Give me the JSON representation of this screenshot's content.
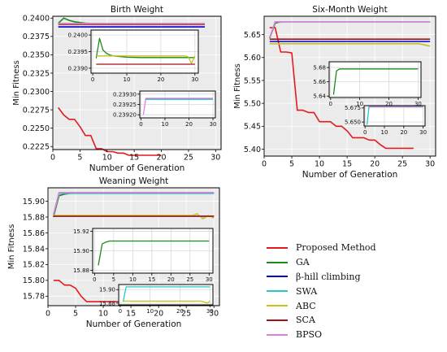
{
  "chart_data": [
    {
      "id": "birth",
      "type": "line",
      "title": "Birth Weight",
      "xlabel": "Number of Generation",
      "ylabel": "Min Fitness",
      "xlim": [
        0,
        31
      ],
      "ylim": [
        0.22208,
        0.24025
      ],
      "xticks": [
        0,
        5,
        10,
        15,
        20,
        25,
        30
      ],
      "yticks": [
        0.2225,
        0.225,
        0.2275,
        0.23,
        0.2325,
        0.235,
        0.2375,
        0.24
      ],
      "ytick_labels": [
        "0.2225",
        "0.2250",
        "0.2275",
        "0.2300",
        "0.2325",
        "0.2350",
        "0.2375",
        "0.2400"
      ],
      "grid": true,
      "series": [
        {
          "key": "proposed",
          "x": [
            1,
            2,
            3,
            4,
            5,
            6,
            7,
            8,
            9,
            10,
            11,
            12,
            13,
            14,
            15,
            16,
            17,
            18,
            19,
            20
          ],
          "y": [
            0.2278,
            0.2268,
            0.2262,
            0.2262,
            0.2252,
            0.224,
            0.224,
            0.2222,
            0.2222,
            0.2218,
            0.2218,
            0.2216,
            0.2216,
            0.2213,
            0.2213,
            0.2213,
            0.2213,
            0.2213,
            0.2213,
            0.2213
          ]
        },
        {
          "key": "ga",
          "x": [
            1,
            2,
            3,
            4,
            5,
            6,
            8,
            10,
            14,
            20,
            28
          ],
          "y": [
            0.2393,
            0.24,
            0.2397,
            0.2395,
            0.2394,
            0.2393,
            0.23925,
            0.2392,
            0.2392,
            0.2392,
            0.2392
          ]
        },
        {
          "key": "bhill",
          "x": [
            1,
            28
          ],
          "y": [
            0.2388,
            0.2388
          ]
        },
        {
          "key": "swa",
          "x": [
            1,
            28
          ],
          "y": [
            0.23925,
            0.23925
          ]
        },
        {
          "key": "abc",
          "x": [
            1,
            28
          ],
          "y": [
            0.23925,
            0.23925
          ]
        },
        {
          "key": "sca",
          "x": [
            1,
            28
          ],
          "y": [
            0.23915,
            0.23915
          ]
        },
        {
          "key": "bpso",
          "x": [
            1,
            28
          ],
          "y": [
            0.23925,
            0.23925
          ]
        }
      ]
    },
    {
      "id": "birth-inset1",
      "type": "line",
      "xlim": [
        -0.5,
        31
      ],
      "ylim": [
        0.23885,
        0.24015
      ],
      "xticks": [
        0,
        10,
        20,
        30
      ],
      "yticks": [
        0.239,
        0.2395,
        0.24
      ],
      "ytick_labels": [
        "0.2390",
        "0.2395",
        "0.2400"
      ],
      "grid": true,
      "series": [
        {
          "key": "ga",
          "x": [
            1,
            2,
            3,
            4,
            5,
            6,
            8,
            10,
            14,
            20,
            30
          ],
          "y": [
            0.2393,
            0.2399,
            0.23955,
            0.23945,
            0.2394,
            0.23937,
            0.23935,
            0.23933,
            0.23932,
            0.23932,
            0.23932
          ]
        },
        {
          "key": "abc",
          "x": [
            1,
            27,
            28,
            29,
            30
          ],
          "y": [
            0.23937,
            0.23937,
            0.23935,
            0.23915,
            0.23937
          ]
        },
        {
          "key": "sca",
          "x": [
            1,
            30
          ],
          "y": [
            0.23912,
            0.23912
          ]
        }
      ]
    },
    {
      "id": "birth-inset2",
      "type": "line",
      "xlim": [
        -0.5,
        31
      ],
      "ylim": [
        0.239185,
        0.239315
      ],
      "xticks": [
        0,
        10,
        20,
        30
      ],
      "yticks": [
        0.2392,
        0.23925,
        0.2393
      ],
      "ytick_labels": [
        "0.23920",
        "0.23925",
        "0.23930"
      ],
      "grid": true,
      "series": [
        {
          "key": "bpso",
          "x": [
            1,
            2,
            30
          ],
          "y": [
            0.2392,
            0.23928,
            0.23928
          ]
        },
        {
          "key": "swa",
          "x": [
            2,
            30
          ],
          "y": [
            0.239275,
            0.239275
          ]
        }
      ]
    },
    {
      "id": "sixmonth",
      "type": "line",
      "title": "Six-Month Weight",
      "xlabel": "Number of Generation",
      "ylabel": "Min Fitness",
      "xlim": [
        0,
        31
      ],
      "ylim": [
        5.385,
        5.69
      ],
      "xticks": [
        0,
        5,
        10,
        15,
        20,
        25,
        30
      ],
      "yticks": [
        5.4,
        5.45,
        5.5,
        5.55,
        5.6,
        5.65
      ],
      "ytick_labels": [
        "5.40",
        "5.45",
        "5.50",
        "5.55",
        "5.60",
        "5.65"
      ],
      "grid": true,
      "series": [
        {
          "key": "proposed",
          "x": [
            1,
            2,
            3,
            4,
            5,
            6,
            7,
            8,
            9,
            10,
            11,
            12,
            13,
            14,
            15,
            16,
            17,
            18,
            19,
            20,
            21,
            22,
            23,
            24,
            25,
            26,
            27
          ],
          "y": [
            5.665,
            5.665,
            5.612,
            5.612,
            5.61,
            5.485,
            5.485,
            5.48,
            5.48,
            5.46,
            5.46,
            5.46,
            5.45,
            5.45,
            5.44,
            5.425,
            5.425,
            5.425,
            5.42,
            5.42,
            5.41,
            5.402,
            5.402,
            5.402,
            5.402,
            5.402,
            5.402
          ]
        },
        {
          "key": "ga",
          "x": [
            1,
            2,
            3,
            30
          ],
          "y": [
            5.642,
            5.675,
            5.678,
            5.678
          ]
        },
        {
          "key": "bhill",
          "x": [
            1,
            30
          ],
          "y": [
            5.635,
            5.635
          ]
        },
        {
          "key": "swa",
          "x": [
            1,
            2,
            30
          ],
          "y": [
            5.643,
            5.678,
            5.678
          ]
        },
        {
          "key": "abc",
          "x": [
            1,
            28,
            30
          ],
          "y": [
            5.63,
            5.63,
            5.625
          ]
        },
        {
          "key": "sca",
          "x": [
            1,
            30
          ],
          "y": [
            5.64,
            5.64
          ]
        },
        {
          "key": "bpso",
          "x": [
            1,
            2,
            30
          ],
          "y": [
            5.643,
            5.678,
            5.678
          ]
        }
      ]
    },
    {
      "id": "sixmonth-inset1",
      "type": "line",
      "xlim": [
        -0.5,
        31
      ],
      "ylim": [
        5.638,
        5.688
      ],
      "xticks": [
        0,
        10,
        20,
        30
      ],
      "yticks": [
        5.64,
        5.66,
        5.68
      ],
      "ytick_labels": [
        "5.64",
        "5.66",
        "5.68"
      ],
      "grid": true,
      "series": [
        {
          "key": "ga",
          "x": [
            1,
            2,
            3,
            4,
            30
          ],
          "y": [
            5.642,
            5.675,
            5.678,
            5.678,
            5.678
          ]
        }
      ]
    },
    {
      "id": "sixmonth-inset2",
      "type": "line",
      "xlim": [
        -0.5,
        31
      ],
      "ylim": [
        5.643,
        5.679
      ],
      "xticks": [
        0,
        10,
        20,
        30
      ],
      "yticks": [
        5.65,
        5.675
      ],
      "ytick_labels": [
        "5.650",
        "5.675"
      ],
      "grid": true,
      "series": [
        {
          "key": "swa",
          "x": [
            1,
            2,
            30
          ],
          "y": [
            5.645,
            5.677,
            5.677
          ]
        },
        {
          "key": "bpso",
          "x": [
            2,
            30
          ],
          "y": [
            5.6775,
            5.6775
          ]
        }
      ]
    },
    {
      "id": "weaning",
      "type": "line",
      "title": "Weaning Weight",
      "xlabel": "Number of Generation",
      "ylabel": "Min Fitness",
      "xlim": [
        0,
        31
      ],
      "ylim": [
        15.768,
        15.917
      ],
      "xticks": [
        0,
        5,
        10,
        15,
        20,
        25,
        30
      ],
      "yticks": [
        15.78,
        15.8,
        15.82,
        15.84,
        15.86,
        15.88,
        15.9
      ],
      "ytick_labels": [
        "15.78",
        "15.80",
        "15.82",
        "15.84",
        "15.86",
        "15.88",
        "15.90"
      ],
      "grid": true,
      "series": [
        {
          "key": "proposed",
          "x": [
            1,
            2,
            3,
            4,
            5,
            6,
            7,
            8,
            9,
            10,
            11,
            12,
            13
          ],
          "y": [
            15.8,
            15.8,
            15.794,
            15.794,
            15.79,
            15.78,
            15.773,
            15.773,
            15.773,
            15.773,
            15.773,
            15.773,
            15.773
          ]
        },
        {
          "key": "ga",
          "x": [
            1,
            2,
            3,
            4,
            30
          ],
          "y": [
            15.88,
            15.907,
            15.909,
            15.91,
            15.91
          ]
        },
        {
          "key": "bhill",
          "x": [
            1,
            30
          ],
          "y": [
            15.881,
            15.881
          ]
        },
        {
          "key": "swa",
          "x": [
            1,
            2,
            30
          ],
          "y": [
            15.883,
            15.91,
            15.91
          ]
        },
        {
          "key": "abc",
          "x": [
            1,
            26,
            27,
            28,
            29,
            30
          ],
          "y": [
            15.882,
            15.882,
            15.884,
            15.878,
            15.882,
            15.879
          ]
        },
        {
          "key": "sca",
          "x": [
            1,
            30
          ],
          "y": [
            15.881,
            15.881
          ]
        },
        {
          "key": "bpso",
          "x": [
            1,
            2,
            30
          ],
          "y": [
            15.883,
            15.911,
            15.911
          ]
        }
      ]
    },
    {
      "id": "weaning-inset1",
      "type": "line",
      "xlim": [
        -0.5,
        31
      ],
      "ylim": [
        15.877,
        15.923
      ],
      "xticks": [
        0,
        5,
        10,
        15,
        20,
        25,
        30
      ],
      "yticks": [
        15.88,
        15.9,
        15.92
      ],
      "ytick_labels": [
        "15.88",
        "15.90",
        "15.92"
      ],
      "grid": true,
      "series": [
        {
          "key": "ga",
          "x": [
            1,
            2,
            3,
            4,
            30
          ],
          "y": [
            15.885,
            15.907,
            15.909,
            15.91,
            15.91
          ]
        }
      ]
    },
    {
      "id": "weaning-inset2",
      "type": "line",
      "xlim": [
        -0.5,
        31
      ],
      "ylim": [
        15.8775,
        15.9075
      ],
      "xticks": [
        0,
        10,
        20,
        30
      ],
      "yticks": [
        15.88,
        15.9
      ],
      "ytick_labels": [
        "15.88",
        "15.90"
      ],
      "grid": true,
      "series": [
        {
          "key": "swa",
          "x": [
            1,
            2,
            30
          ],
          "y": [
            15.882,
            15.904,
            15.904
          ]
        },
        {
          "key": "abc",
          "x": [
            1,
            27,
            28,
            29,
            30
          ],
          "y": [
            15.883,
            15.883,
            15.882,
            15.88,
            15.883
          ]
        }
      ]
    }
  ],
  "legend": [
    {
      "key": "proposed",
      "label": "Proposed Method",
      "color": "#e31a1c"
    },
    {
      "key": "ga",
      "label": "GA",
      "color": "#1a8a1a"
    },
    {
      "key": "bhill",
      "label": "β-hill climbing",
      "color": "#0000cc"
    },
    {
      "key": "swa",
      "label": "SWA",
      "color": "#26c6c6"
    },
    {
      "key": "abc",
      "label": "ABC",
      "color": "#c6c21a"
    },
    {
      "key": "sca",
      "label": "SCA",
      "color": "#a50f15"
    },
    {
      "key": "bpso",
      "label": "BPSO",
      "color": "#de7ede"
    }
  ]
}
